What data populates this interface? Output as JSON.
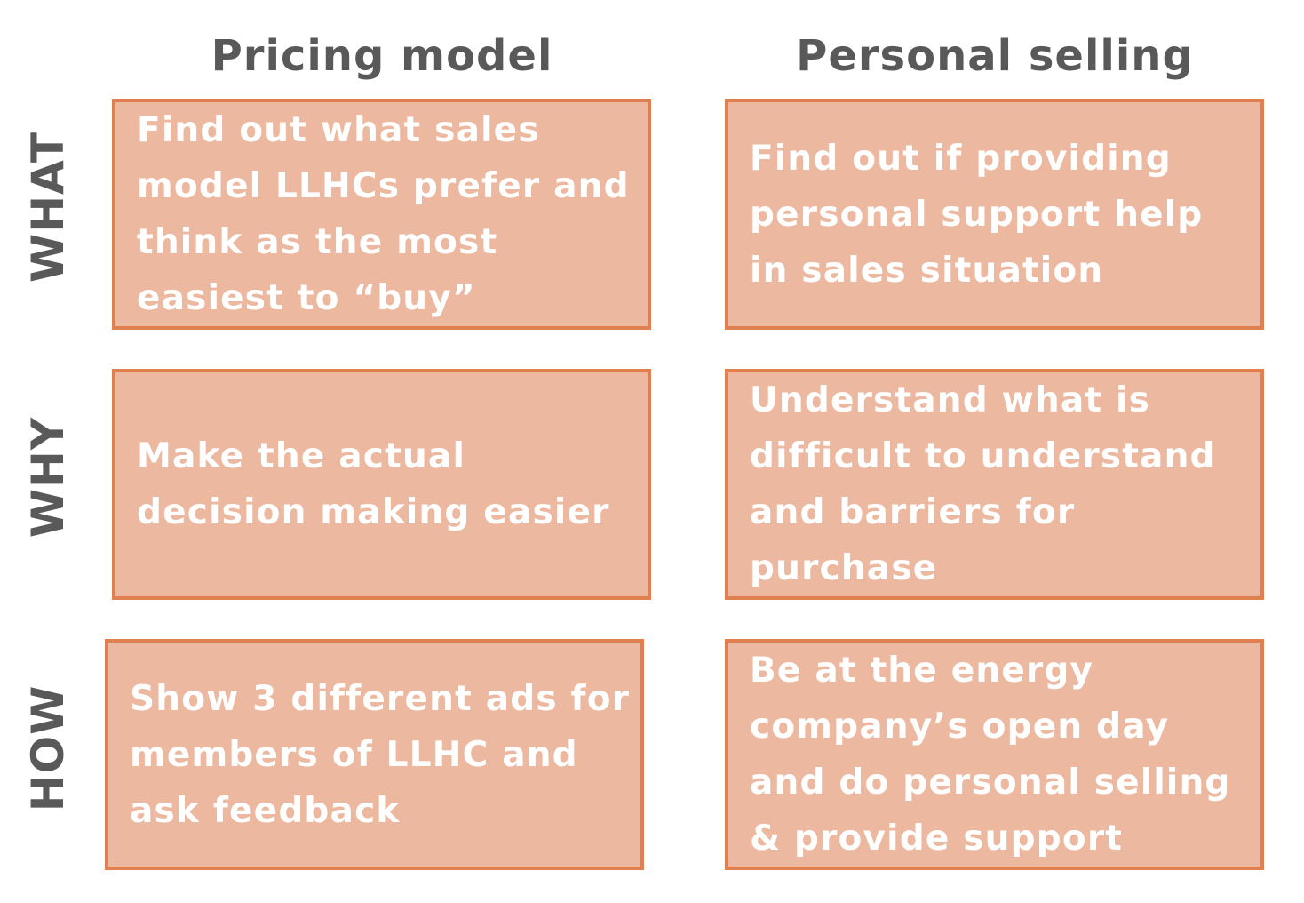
{
  "columns": {
    "pricing": "Pricing model",
    "personal": "Personal selling"
  },
  "rows": {
    "what": "WHAT",
    "why": "WHY",
    "how": "HOW"
  },
  "cells": {
    "what_pricing": "Find out what sales model LLHCs prefer and think as the most easiest to “buy”",
    "what_personal": "Find out if providing personal support help in sales situation",
    "why_pricing": "Make the actual decision making easier",
    "why_personal": "Understand what is difficult  to understand and barriers for purchase",
    "how_pricing": "Show 3 different  ads for members of LLHC and ask feedback",
    "how_personal": "Be at the energy company’s open day and do personal selling & provide support"
  },
  "colors": {
    "card_fill": "#ecb8a0",
    "card_border": "#e07f4f",
    "label_text": "#595959",
    "card_text": "#ffffff"
  }
}
